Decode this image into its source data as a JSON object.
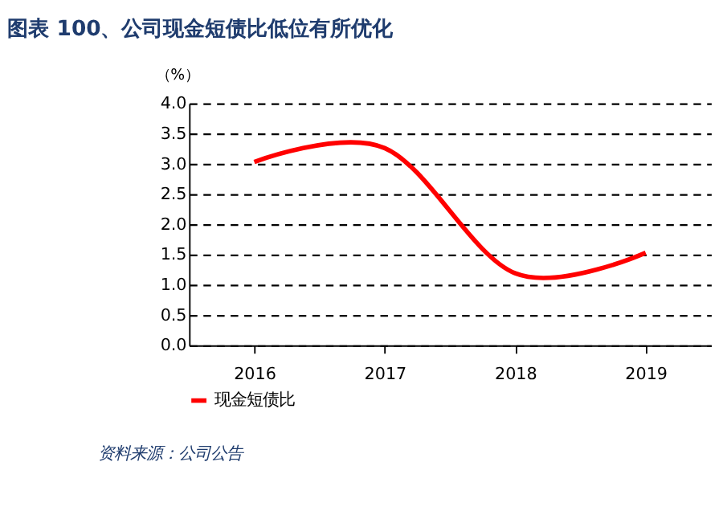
{
  "chart_data": {
    "type": "line",
    "title": "图表 100、公司现金短债比低位有所优化",
    "ylabel": "（%）",
    "categories": [
      "2016",
      "2017",
      "2018",
      "2019"
    ],
    "series": [
      {
        "name": "现金短债比",
        "color": "#ff0000",
        "values": [
          3.03,
          3.26,
          1.19,
          1.53
        ]
      }
    ],
    "ylim": [
      0,
      4
    ],
    "yticks": [
      {
        "value": 0,
        "label": "0.0"
      },
      {
        "value": 0.5,
        "label": "0.5"
      },
      {
        "value": 1,
        "label": "1.0"
      },
      {
        "value": 1.5,
        "label": "1.5"
      },
      {
        "value": 2,
        "label": "2.0"
      },
      {
        "value": 2.5,
        "label": "2.5"
      },
      {
        "value": 3,
        "label": "3.0"
      },
      {
        "value": 3.5,
        "label": "3.5"
      },
      {
        "value": 4,
        "label": "4.0"
      }
    ],
    "grid": "y",
    "legend": "bottom",
    "marker": "none",
    "line_style": "solid",
    "annotations": [
      "资料来源：公司公告"
    ]
  }
}
